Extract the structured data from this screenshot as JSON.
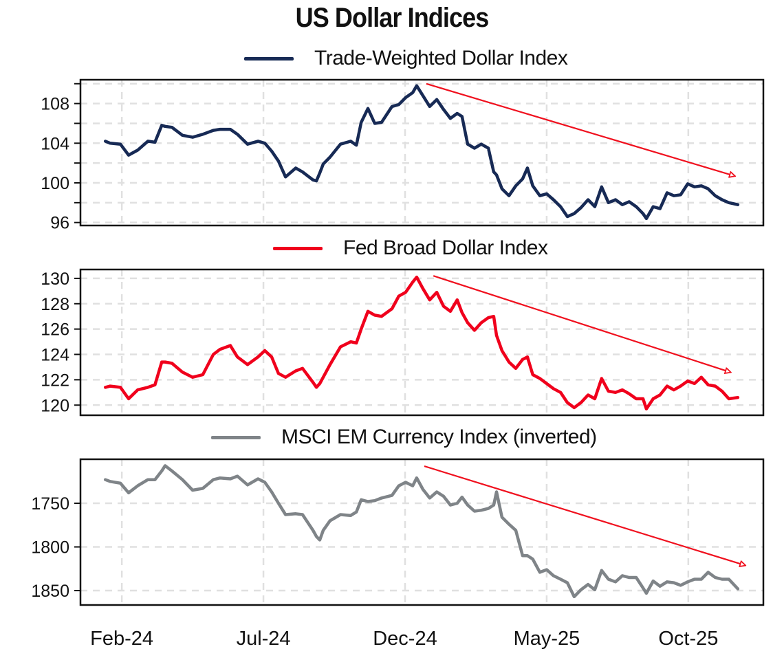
{
  "title": "US Dollar Indices",
  "chart_data": {
    "type": "line",
    "title": "US Dollar Indices",
    "x_unit": "months since Feb-24",
    "x": [
      -0.58,
      -0.41,
      -0.05,
      0.24,
      0.56,
      0.92,
      1.17,
      1.41,
      1.53,
      1.77,
      2.14,
      2.5,
      2.86,
      3.23,
      3.47,
      3.83,
      4.08,
      4.44,
      4.81,
      5.05,
      5.29,
      5.53,
      5.78,
      6.14,
      6.38,
      6.75,
      6.87,
      6.99,
      7.11,
      7.35,
      7.72,
      8.08,
      8.28,
      8.45,
      8.69,
      8.93,
      9.17,
      9.54,
      9.78,
      10.02,
      10.27,
      10.41,
      10.63,
      10.87,
      11.12,
      11.36,
      11.6,
      11.84,
      12.01,
      12.21,
      12.45,
      12.69,
      12.94,
      13.13,
      13.23,
      13.42,
      13.67,
      13.91,
      14.15,
      14.32,
      14.51,
      14.76,
      15.0,
      15.24,
      15.49,
      15.73,
      15.97,
      16.21,
      16.46,
      16.7,
      16.94,
      17.18,
      17.43,
      17.67,
      17.91,
      18.16,
      18.4,
      18.52,
      18.76,
      19.0,
      19.25,
      19.49,
      19.73,
      19.98,
      20.22,
      20.46,
      20.7,
      20.95,
      21.19,
      21.43,
      21.75
    ],
    "xlim": [
      -1.46,
      22.65
    ],
    "x_ticks": [
      0,
      5,
      10,
      15,
      20
    ],
    "x_tick_labels": [
      "Feb-24",
      "Jul-24",
      "Dec-24",
      "May-25",
      "Oct-25"
    ],
    "grid": true,
    "panels": [
      {
        "legend": "Trade-Weighted Dollar Index",
        "color": "#172a55",
        "ylim": [
          95.7,
          110.4
        ],
        "inverted": false,
        "y_ticks": [
          96,
          100,
          104,
          108
        ],
        "y_tick_labels": [
          "96",
          "100",
          "104",
          "108"
        ],
        "y_minor_ticks": [
          98,
          102,
          106,
          110
        ],
        "values": [
          104.2,
          104.0,
          103.9,
          102.8,
          103.3,
          104.2,
          104.1,
          105.8,
          105.7,
          105.6,
          104.8,
          104.6,
          104.9,
          105.3,
          105.4,
          105.4,
          104.9,
          103.9,
          104.2,
          104.0,
          103.2,
          102.2,
          100.6,
          101.5,
          101.1,
          100.3,
          100.2,
          101.0,
          101.9,
          102.6,
          103.9,
          104.2,
          103.8,
          106.1,
          107.5,
          106.0,
          106.1,
          107.7,
          107.9,
          108.6,
          109.1,
          109.8,
          108.8,
          107.7,
          108.4,
          107.4,
          106.5,
          107.0,
          106.7,
          103.9,
          103.5,
          103.9,
          103.5,
          101.1,
          100.8,
          99.4,
          98.7,
          99.7,
          100.4,
          101.5,
          99.7,
          98.7,
          98.9,
          98.3,
          97.6,
          96.6,
          96.9,
          97.5,
          98.3,
          97.6,
          99.6,
          98.0,
          98.3,
          97.8,
          98.1,
          97.6,
          96.9,
          96.4,
          97.6,
          97.4,
          99.0,
          98.7,
          98.8,
          99.9,
          99.6,
          99.7,
          99.4,
          98.7,
          98.3,
          98.0,
          97.8
        ],
        "trend_arrow": {
          "from": [
            10.75,
            110.0
          ],
          "to": [
            21.63,
            100.7
          ],
          "color": "#f0101e"
        }
      },
      {
        "legend": "Fed Broad Dollar Index",
        "color": "#f0001c",
        "ylim": [
          119.2,
          130.7
        ],
        "inverted": false,
        "y_ticks": [
          120,
          122,
          124,
          126,
          128,
          130
        ],
        "y_tick_labels": [
          "120",
          "122",
          "124",
          "126",
          "128",
          "130"
        ],
        "y_minor_ticks": [],
        "values": [
          121.4,
          121.5,
          121.4,
          120.5,
          121.2,
          121.4,
          121.6,
          123.4,
          123.4,
          123.3,
          122.6,
          122.2,
          122.4,
          124.0,
          124.4,
          124.7,
          123.8,
          123.2,
          123.8,
          124.3,
          123.8,
          122.5,
          122.2,
          122.7,
          122.9,
          121.8,
          121.4,
          121.7,
          122.2,
          123.2,
          124.6,
          125.0,
          124.9,
          126.0,
          127.4,
          127.1,
          127.0,
          127.6,
          128.6,
          128.9,
          129.7,
          130.1,
          129.2,
          128.3,
          128.9,
          127.8,
          127.4,
          128.3,
          127.3,
          126.5,
          125.9,
          126.5,
          126.9,
          127.0,
          125.5,
          124.3,
          123.4,
          122.9,
          123.6,
          123.8,
          122.4,
          122.1,
          121.7,
          121.3,
          121.0,
          120.2,
          119.8,
          120.2,
          120.8,
          120.5,
          122.1,
          121.1,
          121.0,
          121.2,
          120.9,
          120.5,
          120.5,
          119.7,
          120.5,
          120.8,
          121.5,
          121.2,
          121.5,
          121.9,
          121.7,
          122.2,
          121.6,
          121.5,
          121.1,
          120.5,
          120.6
        ],
        "trend_arrow": {
          "from": [
            11.0,
            130.2
          ],
          "to": [
            21.48,
            122.6
          ],
          "color": "#f0101e"
        }
      },
      {
        "legend": "MSCI EM Currency Index (inverted)",
        "color": "#7f8488",
        "ylim": [
          1699.6,
          1866.5
        ],
        "inverted": true,
        "y_ticks": [
          1750,
          1800,
          1850
        ],
        "y_tick_labels": [
          "1750",
          "1800",
          "1850"
        ],
        "y_minor_ticks": [],
        "values": [
          1723,
          1725,
          1727,
          1738,
          1730,
          1723,
          1723,
          1713,
          1707,
          1713,
          1723,
          1735,
          1733,
          1723,
          1721,
          1722,
          1719,
          1729,
          1722,
          1726,
          1737,
          1750,
          1763,
          1762,
          1763,
          1781,
          1788,
          1792,
          1781,
          1770,
          1763,
          1764,
          1760,
          1746,
          1748,
          1747,
          1744,
          1741,
          1730,
          1726,
          1730,
          1721,
          1734,
          1744,
          1737,
          1742,
          1752,
          1750,
          1743,
          1752,
          1759,
          1758,
          1756,
          1752,
          1737,
          1766,
          1774,
          1781,
          1810,
          1810,
          1814,
          1829,
          1826,
          1833,
          1837,
          1841,
          1857,
          1849,
          1843,
          1849,
          1827,
          1837,
          1840,
          1833,
          1835,
          1835,
          1847,
          1853,
          1839,
          1845,
          1840,
          1841,
          1844,
          1840,
          1837,
          1837,
          1829,
          1835,
          1837,
          1837,
          1848
        ],
        "trend_arrow": {
          "from": [
            10.68,
            1707.5
          ],
          "to": [
            22.0,
            1821
          ],
          "color": "#f0101e"
        }
      }
    ]
  }
}
